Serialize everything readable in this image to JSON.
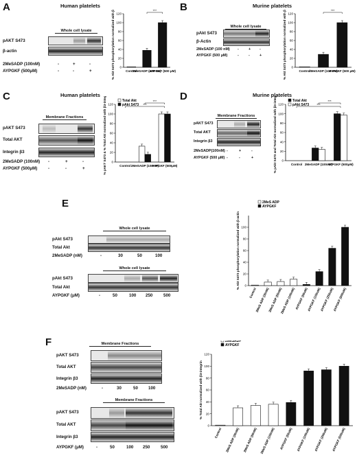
{
  "A": {
    "letter": "A",
    "title": "Human platelets",
    "box_header": "Whole cell lysate",
    "row_labels": [
      "pAKT S473",
      "β-actin"
    ],
    "treat_labels": [
      "2MeSADP (100nM)",
      "AYPGKF (500μM)"
    ],
    "treat_marks": [
      [
        "-",
        "+",
        "-"
      ],
      [
        "-",
        "-",
        "+"
      ]
    ],
    "ylabel": "% Akt S473 phosphorylation normalized with β-actin",
    "chart_data": {
      "type": "bar",
      "categories": [
        "Control",
        "2MeSADP (100 nM)",
        "AYPGKF (500 μM)"
      ],
      "values": [
        0,
        38,
        100
      ],
      "ylim": [
        0,
        120
      ],
      "yticks": [
        0,
        20,
        40,
        60,
        80,
        100,
        120
      ],
      "colors": [
        "#ffffff",
        "#111111",
        "#111111"
      ],
      "significance": [
        "***"
      ]
    }
  },
  "B": {
    "letter": "B",
    "title": "Murine platelets",
    "box_header": "Whole cell lysate",
    "row_labels": [
      "pAkt S473",
      "β-Actin"
    ],
    "treat_labels": [
      "2MeSADP (100 nM)",
      "AYPGKF (500 μM)"
    ],
    "treat_marks": [
      [
        "-",
        "+",
        "-"
      ],
      [
        "-",
        "-",
        "+"
      ]
    ],
    "ylabel": "% Akt S473 phosphorylation normalized with β-actin",
    "chart_data": {
      "type": "bar",
      "categories": [
        "Control",
        "2MeSADP (100 nM)",
        "AYPGKF (500 μM)"
      ],
      "values": [
        0,
        29,
        100
      ],
      "ylim": [
        0,
        120
      ],
      "yticks": [
        0,
        20,
        40,
        60,
        80,
        100,
        120
      ],
      "colors": [
        "#ffffff",
        "#111111",
        "#111111"
      ],
      "significance": [
        "***"
      ]
    }
  },
  "C": {
    "letter": "C",
    "title": "Human platelets",
    "box_header": "Membrane Fractions",
    "row_labels": [
      "pAKT S473",
      "Total AKT",
      "Integrin β3"
    ],
    "treat_labels": [
      "2MeSADP (100nM)",
      "AYPGKF (500μM)"
    ],
    "treat_marks": [
      [
        "-",
        "+",
        "-"
      ],
      [
        "-",
        "-",
        "+"
      ]
    ],
    "ylabel": "% pAKT S473 & % Total Akt normalized with β3-integrin",
    "legend": [
      "Total Akt",
      "pAkt S473"
    ],
    "chart_data": {
      "type": "bar",
      "categories": [
        "Control",
        "2MeSADP (100nM)",
        "AYPGKF (500μM)"
      ],
      "series": [
        {
          "name": "Total Akt",
          "values": [
            0,
            33,
            100
          ],
          "color": "#ffffff"
        },
        {
          "name": "pAkt S473",
          "values": [
            0,
            16,
            100
          ],
          "color": "#111111"
        }
      ],
      "ylim": [
        0,
        120
      ],
      "yticks": [
        0,
        20,
        40,
        60,
        80,
        100,
        120
      ],
      "significance": [
        "***",
        "***"
      ]
    }
  },
  "D": {
    "letter": "D",
    "title": "Murine platelets",
    "box_header": "Membrane Fractions",
    "row_labels": [
      "pAKT S473",
      "Total AKT",
      "Integrin β3"
    ],
    "treat_labels": [
      "2MeSADP(100nM)",
      "AYPGKF (500 μM)"
    ],
    "treat_marks": [
      [
        "-",
        "+",
        "-"
      ],
      [
        "-",
        "-",
        "+"
      ]
    ],
    "ylabel": "% pAkt S473 and Total Akt normalized with β3-integrin",
    "legend": [
      "Total Akt",
      "pAkt S473"
    ],
    "chart_data": {
      "type": "bar",
      "categories": [
        "Control",
        "2MeSADP (100nM)",
        "AYPGKF (500μM)"
      ],
      "series": [
        {
          "name": "Total Akt",
          "values": [
            0,
            27,
            100
          ],
          "color": "#111111"
        },
        {
          "name": "pAkt S473",
          "values": [
            0,
            24,
            97
          ],
          "color": "#ffffff"
        }
      ],
      "ylim": [
        0,
        120
      ],
      "yticks": [
        0,
        20,
        40,
        60,
        80,
        100,
        120
      ],
      "significance": [
        "***",
        "***"
      ]
    }
  },
  "E": {
    "letter": "E",
    "box1_header": "Whole cell lysate",
    "box2_header": "Whole cell lysate",
    "box1_rows": [
      "pAkt S473",
      "Total Akt"
    ],
    "box2_rows": [
      "pAkt S473",
      "Total Akt"
    ],
    "dose1_label": "2MeSADP (nM)",
    "dose1_values": [
      "-",
      "30",
      "50",
      "100"
    ],
    "dose2_label": "AYPGKF (μM)",
    "dose2_values": [
      "-",
      "50",
      "100",
      "250",
      "500"
    ],
    "ylabel": "% Akt S473 phosphorylation normalized with β-actin",
    "legend": [
      "2MeS ADP",
      "AYPGKF"
    ],
    "chart_data": {
      "type": "bar",
      "categories": [
        "Control",
        "2MeS ADP (30nM)",
        "2MeS ADP (50nM)",
        "2MeS ADP (100nM)",
        "AYPGKF (50uM)",
        "AYPGKF (100uM)",
        "AYPGKF (250uM)",
        "AYPGKF (500uM)"
      ],
      "values": [
        0,
        6,
        7,
        11,
        2,
        24,
        64,
        100
      ],
      "colors": [
        "#ffffff",
        "#ffffff",
        "#ffffff",
        "#ffffff",
        "#111111",
        "#111111",
        "#111111",
        "#111111"
      ],
      "ylim": [
        0,
        120
      ],
      "yticks": [
        0,
        20,
        40,
        60,
        80,
        100
      ]
    }
  },
  "F": {
    "letter": "F",
    "box1_header": "Membrane Fractions",
    "box2_header": "Membrane Fractions",
    "box1_rows": [
      "pAKT S473",
      "Total AKT",
      "Integrin β3"
    ],
    "box2_rows": [
      "pAKT S473",
      "Total AKT",
      "Integrin β3"
    ],
    "dose1_label": "2MeSADP (nM)",
    "dose1_values": [
      "-",
      "30",
      "50",
      "100"
    ],
    "dose2_label": "AYPGKF (μM)",
    "dose2_values": [
      "-",
      "50",
      "100",
      "250",
      "500"
    ],
    "ylabel": "% Total Akt normalized with β3-integrin",
    "legend": [
      "2MeSADP",
      "AYPGKF"
    ],
    "chart_data": {
      "type": "bar",
      "categories": [
        "Control",
        "2MeS ADP (30nM)",
        "2MeS ADP (50nM)",
        "2MeS ADP (100nM)",
        "AYPGKF (50uM)",
        "AYPGKF (100uM)",
        "AYPGKF (250uM)",
        "AYPGKF (500uM)"
      ],
      "values": [
        0,
        30,
        34,
        36,
        39,
        92,
        94,
        100
      ],
      "colors": [
        "#ffffff",
        "#ffffff",
        "#ffffff",
        "#ffffff",
        "#111111",
        "#111111",
        "#111111",
        "#111111"
      ],
      "ylim": [
        0,
        120
      ],
      "yticks": [
        0,
        20,
        40,
        60,
        80,
        100,
        120
      ]
    }
  }
}
